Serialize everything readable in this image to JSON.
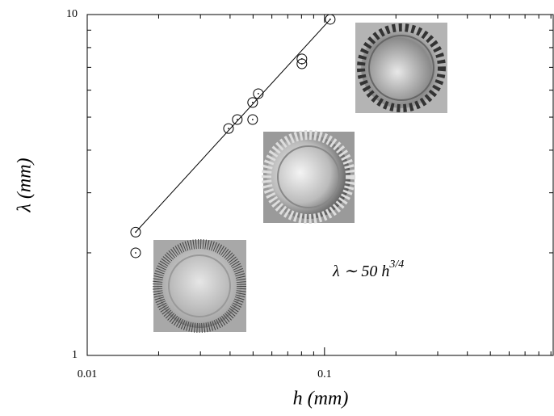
{
  "chart_data": {
    "type": "scatter",
    "x_label": "h (mm)",
    "y_label": "λ (mm)",
    "annotation": {
      "text": "λ ∼ 50 h",
      "superscript": "3/4"
    },
    "xlog": true,
    "ylog": true,
    "xlim": [
      0.01,
      0.92
    ],
    "ylim": [
      1,
      10
    ],
    "xticks": [
      0.01,
      0.1
    ],
    "yticks": [
      1,
      10
    ],
    "xminorticks": [
      0.02,
      0.03,
      0.04,
      0.05,
      0.06,
      0.07,
      0.08,
      0.09,
      0.2,
      0.3,
      0.4,
      0.5,
      0.6,
      0.7,
      0.8,
      0.9
    ],
    "yminorticks": [
      2,
      3,
      4,
      5,
      6,
      7,
      8,
      9
    ],
    "color": "#000000",
    "x": [
      0.016,
      0.016,
      0.0394,
      0.0429,
      0.0498,
      0.0498,
      0.0526,
      0.0803,
      0.0803,
      0.1057
    ],
    "values": [
      2.3,
      2.0,
      4.63,
      4.92,
      4.92,
      5.52,
      5.86,
      7.41,
      7.17,
      9.68
    ],
    "fit": {
      "x": [
        0.016,
        0.1057
      ],
      "values": [
        2.3,
        9.68
      ]
    }
  }
}
